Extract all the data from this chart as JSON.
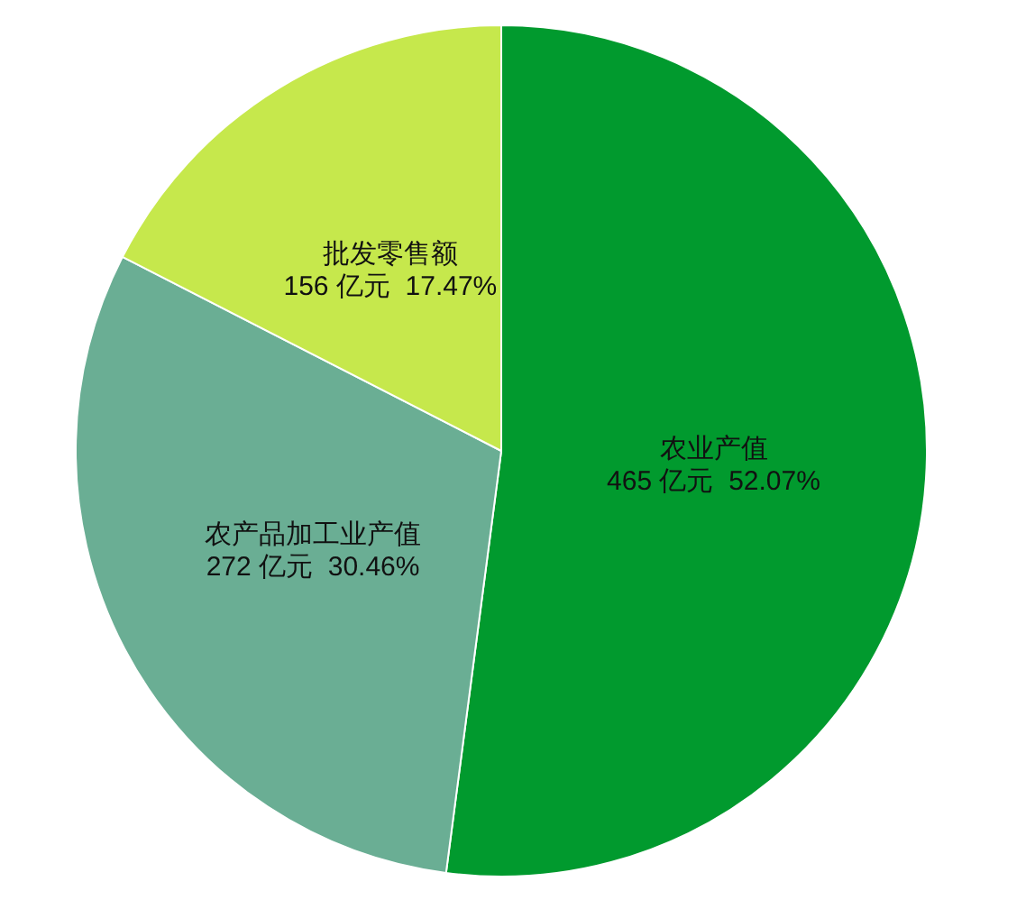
{
  "chart_data": {
    "type": "pie",
    "categories": [
      "农业产值",
      "农产品加工业产值",
      "批发零售额"
    ],
    "values": [
      465,
      272,
      156
    ],
    "value_labels": [
      "465 亿元  52.07%",
      "272 亿元  30.46%",
      "156 亿元  17.47%"
    ],
    "colors": [
      "#019a2e",
      "#6aae94",
      "#c6e84c"
    ]
  }
}
